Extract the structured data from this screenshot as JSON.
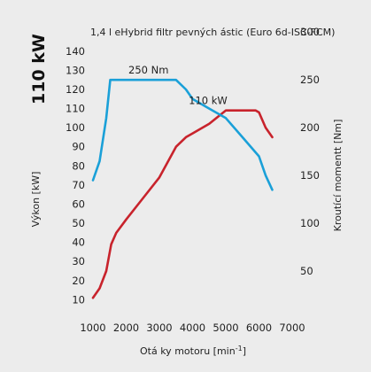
{
  "chart_data": {
    "type": "line",
    "title": "1,4 l eHybrid filtr pevných ástic (Euro 6d-ISC-FCM)",
    "big_label": "110 kW",
    "xlabel": "Otá ky motoru [min",
    "xlabel_sup": "-1",
    "xlabel_end": "]",
    "ylabel_left": "Výkon [kW]",
    "ylabel_right": "Kroutící momentt [Nm]",
    "x_ticks": [
      1000,
      2000,
      3000,
      4000,
      5000,
      6000,
      7000
    ],
    "y_left_ticks": [
      10,
      20,
      30,
      40,
      50,
      60,
      70,
      80,
      90,
      100,
      110,
      120,
      130,
      140
    ],
    "y_right_ticks": [
      50,
      100,
      150,
      200,
      250,
      300
    ],
    "xlim": [
      1000,
      7000
    ],
    "ylim_left": [
      0,
      145
    ],
    "ylim_right": [
      0,
      290
    ],
    "grid": false,
    "series": [
      {
        "name": "",
        "axis": "left",
        "color": "#c8232c",
        "points": [
          [
            1000,
            11
          ],
          [
            1200,
            16
          ],
          [
            1400,
            25
          ],
          [
            1550,
            39
          ],
          [
            1700,
            45
          ],
          [
            2000,
            52
          ],
          [
            2500,
            63
          ],
          [
            3000,
            74
          ],
          [
            3500,
            90
          ],
          [
            3800,
            95
          ],
          [
            4000,
            97
          ],
          [
            4500,
            102
          ],
          [
            5000,
            109
          ],
          [
            5500,
            109
          ],
          [
            5900,
            109
          ],
          [
            6000,
            108
          ],
          [
            6200,
            100
          ],
          [
            6400,
            95
          ]
        ],
        "end_label": "110 kW"
      },
      {
        "name": "",
        "axis": "right",
        "color": "#1aa0d8",
        "points": [
          [
            1000,
            145
          ],
          [
            1200,
            165
          ],
          [
            1400,
            210
          ],
          [
            1520,
            250
          ],
          [
            2000,
            250
          ],
          [
            3000,
            250
          ],
          [
            3500,
            250
          ],
          [
            3800,
            240
          ],
          [
            4000,
            230
          ],
          [
            4500,
            220
          ],
          [
            5000,
            210
          ],
          [
            5500,
            190
          ],
          [
            6000,
            170
          ],
          [
            6200,
            150
          ],
          [
            6400,
            135
          ]
        ],
        "peak_label": "250 Nm"
      }
    ]
  }
}
